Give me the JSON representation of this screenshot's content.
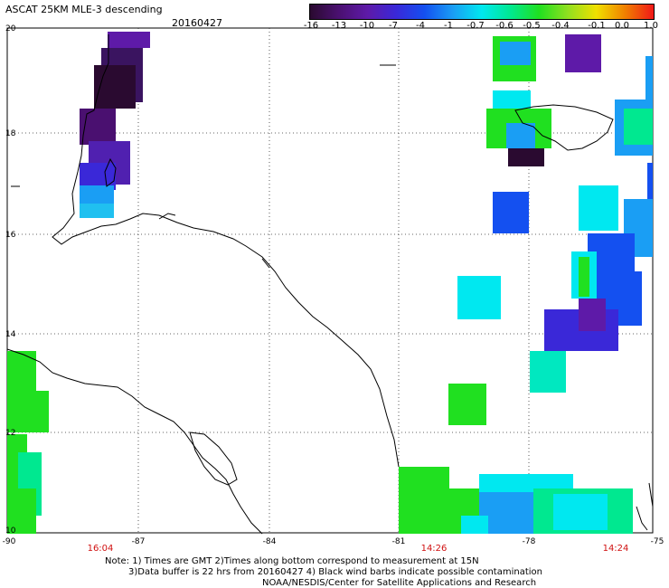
{
  "header": {
    "title": "ASCAT 25KM MLE-3 descending",
    "date": "20160427"
  },
  "colorbar": {
    "labels": [
      "-16",
      "-13",
      "-10",
      "-7",
      "-4",
      "-1",
      "-0.7",
      "-0.6",
      "-0.5",
      "-0.4",
      "-0.1",
      "0.0",
      "1.0"
    ],
    "colors": [
      "#2a0a30",
      "#4a1070",
      "#5e1aa8",
      "#3a28d8",
      "#1450f0",
      "#1a9ef4",
      "#00e8f0",
      "#00e890",
      "#20e020",
      "#90e020",
      "#f0e000",
      "#f08000",
      "#f01818"
    ]
  },
  "y_axis": {
    "labels": [
      "20",
      "18",
      "16",
      "14",
      "12",
      "10"
    ]
  },
  "x_axis": {
    "labels": [
      "-90",
      "-87",
      "-84",
      "-81",
      "-78",
      "-75"
    ]
  },
  "times": [
    "16:04",
    "14:26",
    "14:24"
  ],
  "notes": {
    "line1": "Note: 1) Times are GMT 2)Times along bottom correspond to measurement at 15N",
    "line2": "3)Data buffer is 22 hrs from 20160427 4) Black wind barbs indicate possible contamination",
    "line3": "NOAA/NESDIS/Center for Satellite Applications and Research"
  }
}
